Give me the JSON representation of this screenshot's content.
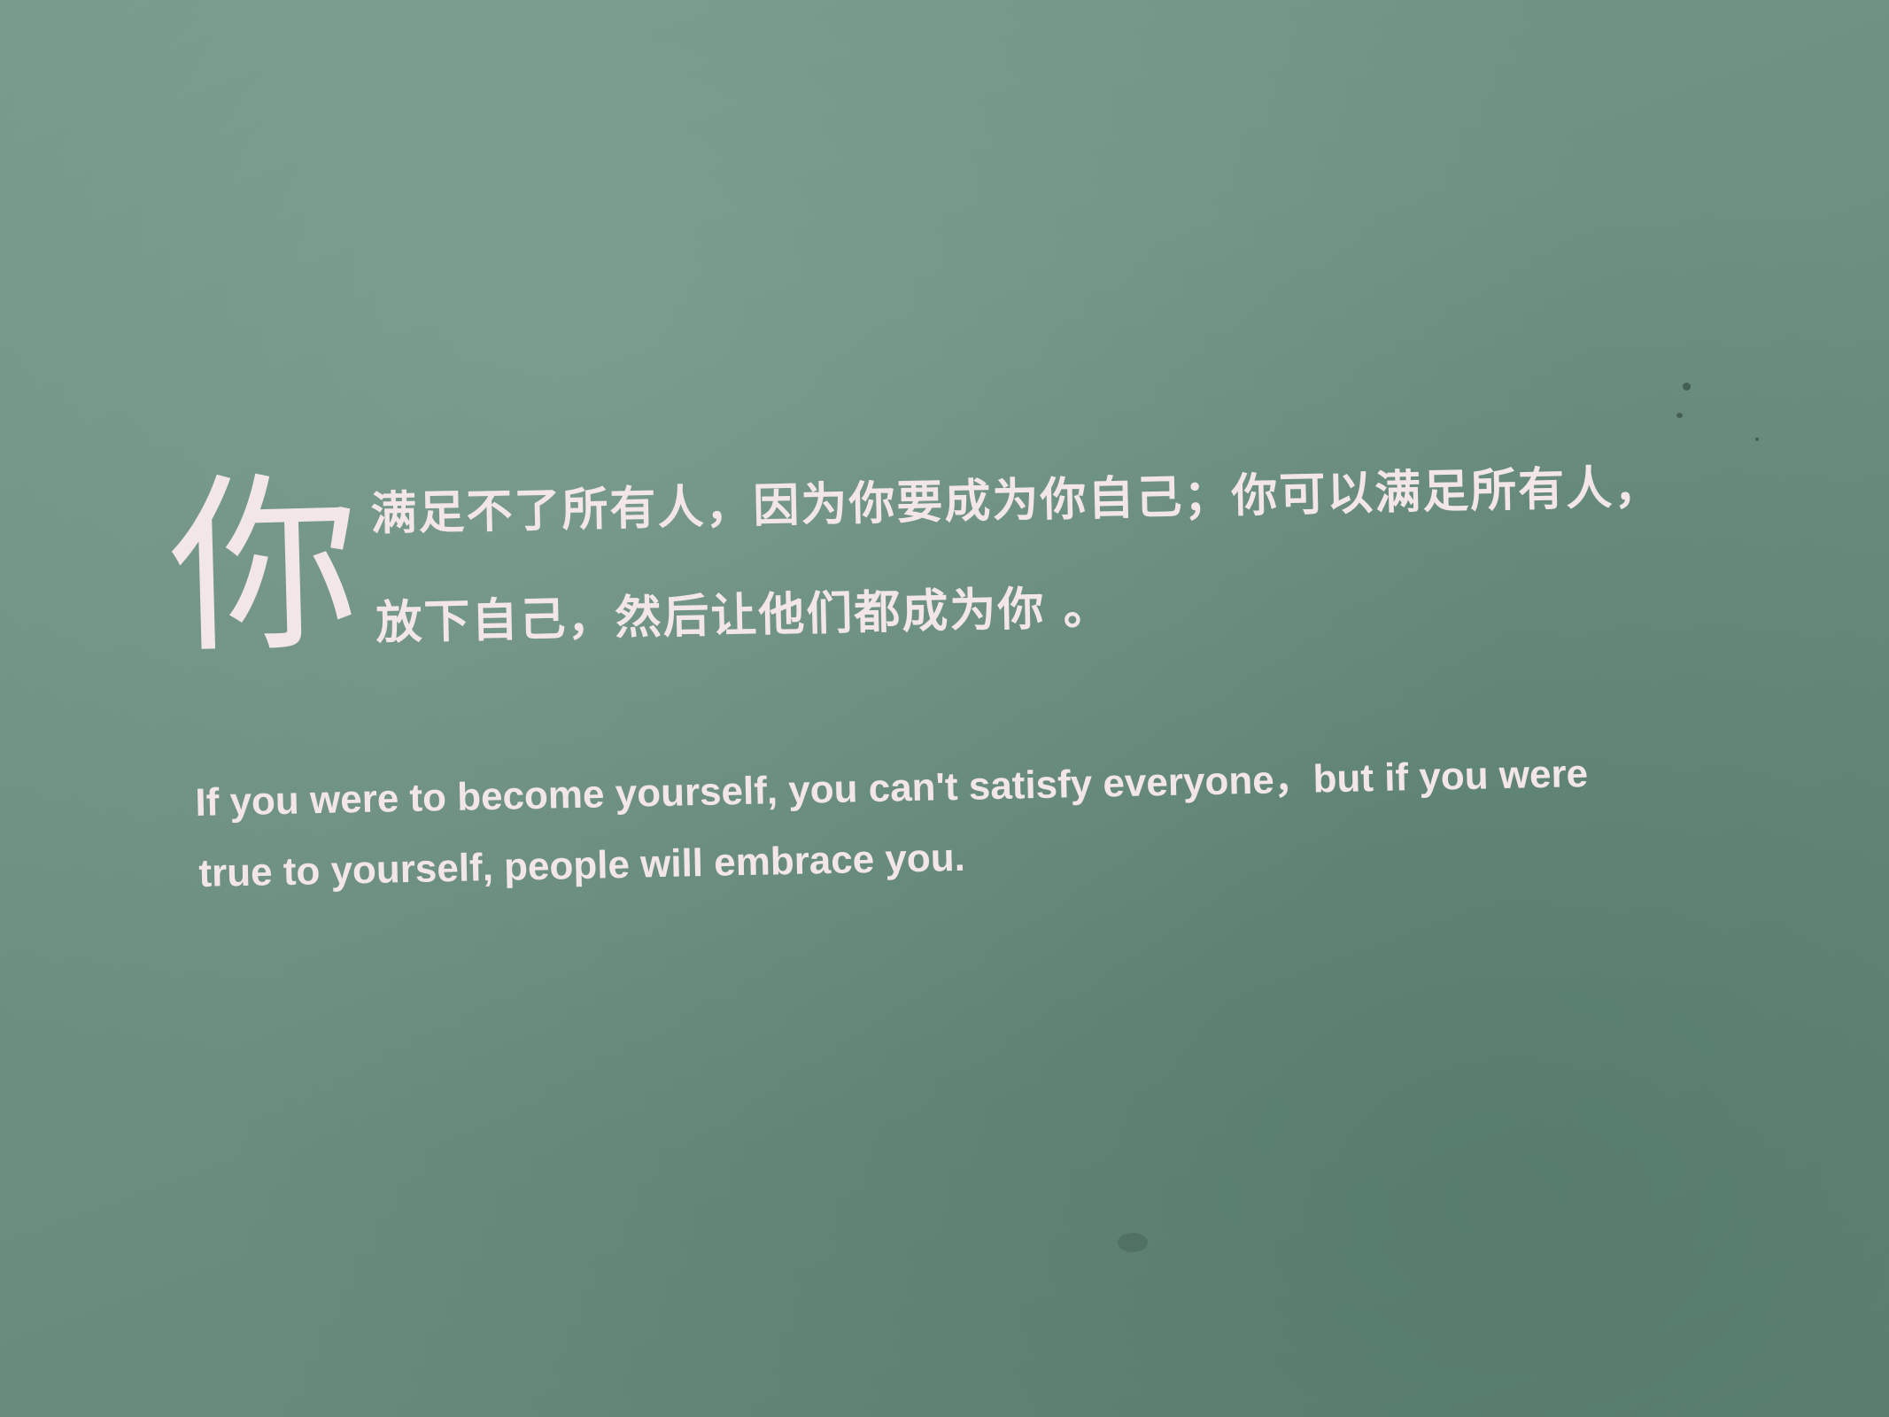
{
  "board": {
    "big_char": "你",
    "zh_line_1": "满足不了所有人，因为你要成为你自己；你可以满足所有人，",
    "zh_line_2": "放下自己，然后让他们都成为你 。",
    "en_line_1": "If you were to become yourself, you can't satisfy everyone，but if you were",
    "en_line_2": "true to yourself, people will embrace you."
  },
  "colors": {
    "background": "#6c8f80",
    "text": "#f3e6e9"
  }
}
